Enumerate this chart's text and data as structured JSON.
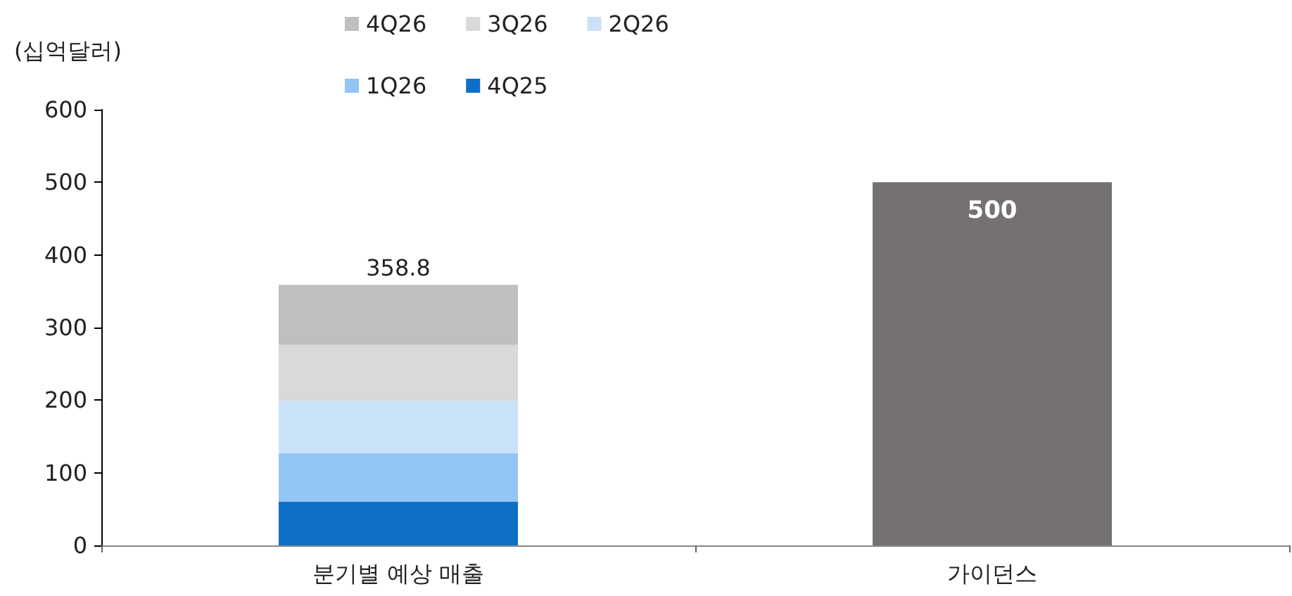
{
  "chart_data": {
    "type": "bar",
    "ylabel": "(십억달러)",
    "categories": [
      "분기별 예상 매출",
      "가이던스"
    ],
    "stacked": true,
    "series": [
      {
        "name": "4Q25",
        "color": "#0f6fc6",
        "values": [
          60,
          null
        ]
      },
      {
        "name": "1Q26",
        "color": "#92c5f3",
        "values": [
          67,
          null
        ]
      },
      {
        "name": "2Q26",
        "color": "#c9e2f8",
        "values": [
          72,
          null
        ]
      },
      {
        "name": "3Q26",
        "color": "#d9d9d9",
        "values": [
          77,
          null
        ]
      },
      {
        "name": "4Q26",
        "color": "#bfbfbf",
        "values": [
          82.8,
          null
        ]
      },
      {
        "color": "#767171",
        "values": [
          null,
          500
        ],
        "value_labels": [
          null,
          "500"
        ]
      }
    ],
    "totals": [
      "358.8",
      null
    ],
    "ylim": [
      0,
      600
    ],
    "yticks": [
      0,
      100,
      200,
      300,
      400,
      500,
      600
    ],
    "grid": false,
    "legend": "top"
  }
}
